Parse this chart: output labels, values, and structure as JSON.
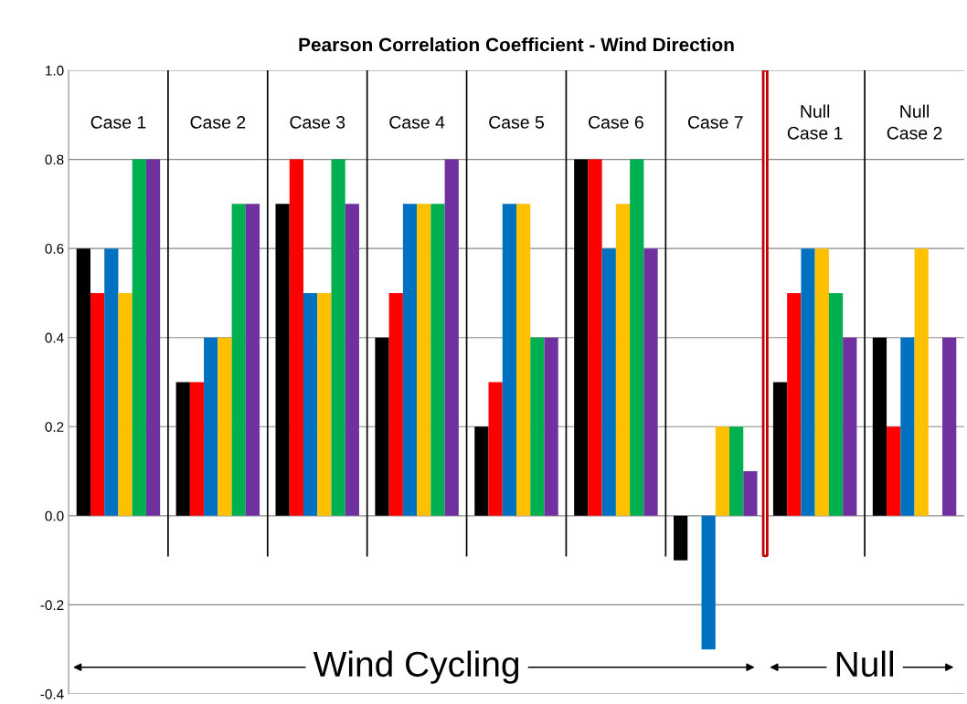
{
  "chart_data": {
    "type": "bar",
    "title": "Pearson Correlation Coefficient - Wind Direction",
    "categories": [
      "Case 1",
      "Case 2",
      "Case 3",
      "Case 4",
      "Case 5",
      "Case 6",
      "Case 7",
      "Null\nCase 1",
      "Null\nCase 2"
    ],
    "series": [
      {
        "color": "#000000",
        "values": [
          0.6,
          0.3,
          0.7,
          0.4,
          0.2,
          0.8,
          -0.1,
          0.3,
          0.4
        ]
      },
      {
        "color": "#ff0000",
        "values": [
          0.5,
          0.3,
          0.8,
          0.5,
          0.3,
          0.8,
          0.0,
          0.5,
          0.2
        ]
      },
      {
        "color": "#0070c0",
        "values": [
          0.6,
          0.4,
          0.5,
          0.7,
          0.7,
          0.6,
          -0.3,
          0.6,
          0.4
        ]
      },
      {
        "color": "#ffc000",
        "values": [
          0.5,
          0.4,
          0.5,
          0.7,
          0.7,
          0.7,
          0.2,
          0.6,
          0.6
        ]
      },
      {
        "color": "#00b050",
        "values": [
          0.8,
          0.7,
          0.8,
          0.7,
          0.4,
          0.8,
          0.2,
          0.5,
          0.0
        ]
      },
      {
        "color": "#7030a0",
        "values": [
          0.8,
          0.7,
          0.7,
          0.8,
          0.4,
          0.6,
          0.1,
          0.4,
          0.4
        ]
      }
    ],
    "ylim": [
      -0.4,
      1.0
    ],
    "yticks": [
      {
        "value": -0.4,
        "label": "-0.4"
      },
      {
        "value": -0.2,
        "label": "-0.2"
      },
      {
        "value": 0.0,
        "label": "0.0"
      },
      {
        "value": 0.2,
        "label": "0.2"
      },
      {
        "value": 0.4,
        "label": "0.4"
      },
      {
        "value": 0.6,
        "label": "0.6"
      },
      {
        "value": 0.8,
        "label": "0.8"
      },
      {
        "value": 1.0,
        "label": "1.0"
      }
    ],
    "grid": "y",
    "tick_labels": "y",
    "annotations": [
      "Wind Cycling",
      "Null"
    ]
  }
}
